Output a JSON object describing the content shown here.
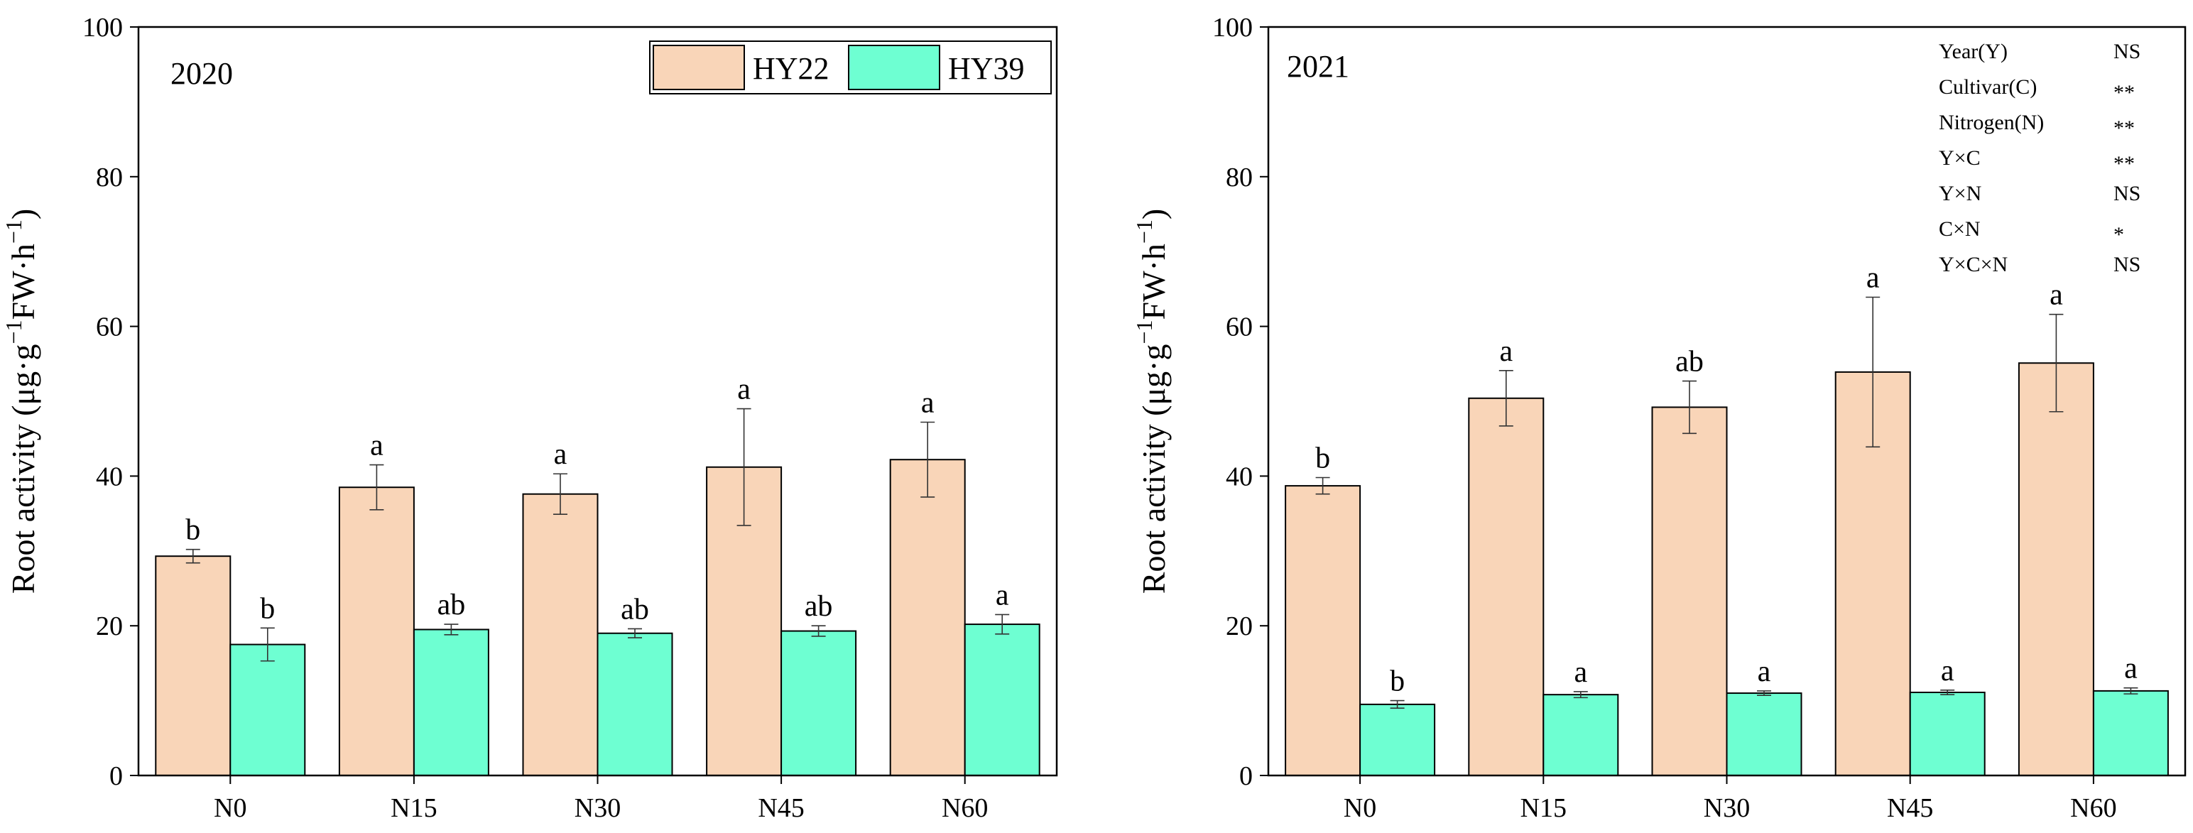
{
  "chart_data": [
    {
      "type": "bar",
      "panel_label": "2020",
      "ylabel": "Root activity (μg·g",
      "ylabel_unit": "FW·h",
      "ylabel_sup": "−1",
      "ylabel_close": ")",
      "ylim": [
        0,
        100
      ],
      "yticks": [
        "0",
        "20",
        "40",
        "60",
        "80",
        "100"
      ],
      "categories": [
        "N0",
        "N15",
        "N30",
        "N45",
        "N60"
      ],
      "series": [
        {
          "name": "HY22",
          "color": "#F9D5B8",
          "values": [
            29.3,
            38.5,
            37.6,
            41.2,
            42.2
          ],
          "errors": [
            0.9,
            3.0,
            2.7,
            7.8,
            5.0
          ],
          "letters": [
            "b",
            "a",
            "a",
            "a",
            "a"
          ]
        },
        {
          "name": "HY39",
          "color": "#6EFFD2",
          "values": [
            17.5,
            19.5,
            19.0,
            19.3,
            20.2
          ],
          "errors": [
            2.2,
            0.7,
            0.6,
            0.7,
            1.3
          ],
          "letters": [
            "b",
            "ab",
            "ab",
            "ab",
            "a"
          ]
        }
      ],
      "legend": [
        "HY22",
        "HY39"
      ],
      "legend_position": "top-right"
    },
    {
      "type": "bar",
      "panel_label": "2021",
      "ylabel": "Root activity (μg·g",
      "ylabel_unit": "FW·h",
      "ylabel_sup": "−1",
      "ylabel_close": ")",
      "ylim": [
        0,
        100
      ],
      "yticks": [
        "0",
        "20",
        "40",
        "60",
        "80",
        "100"
      ],
      "categories": [
        "N0",
        "N15",
        "N30",
        "N45",
        "N60"
      ],
      "series": [
        {
          "name": "HY22",
          "color": "#F9D5B8",
          "values": [
            38.7,
            50.4,
            49.2,
            53.9,
            55.1
          ],
          "errors": [
            1.1,
            3.7,
            3.5,
            10.0,
            6.5
          ],
          "letters": [
            "b",
            "a",
            "ab",
            "a",
            "a"
          ]
        },
        {
          "name": "HY39",
          "color": "#6EFFD2",
          "values": [
            9.5,
            10.8,
            11.0,
            11.1,
            11.3
          ],
          "errors": [
            0.5,
            0.4,
            0.3,
            0.3,
            0.4
          ],
          "letters": [
            "b",
            "a",
            "a",
            "a",
            "a"
          ]
        }
      ],
      "stats": [
        {
          "factor": "Year(Y)",
          "sig": "NS"
        },
        {
          "factor": "Cultivar(C)",
          "sig": "**"
        },
        {
          "factor": "Nitrogen(N)",
          "sig": "**"
        },
        {
          "factor": "Y×C",
          "sig": "**"
        },
        {
          "factor": "Y×N",
          "sig": "NS"
        },
        {
          "factor": "C×N",
          "sig": "*"
        },
        {
          "factor": "Y×C×N",
          "sig": "NS"
        }
      ],
      "stats_position": "top-right"
    }
  ]
}
